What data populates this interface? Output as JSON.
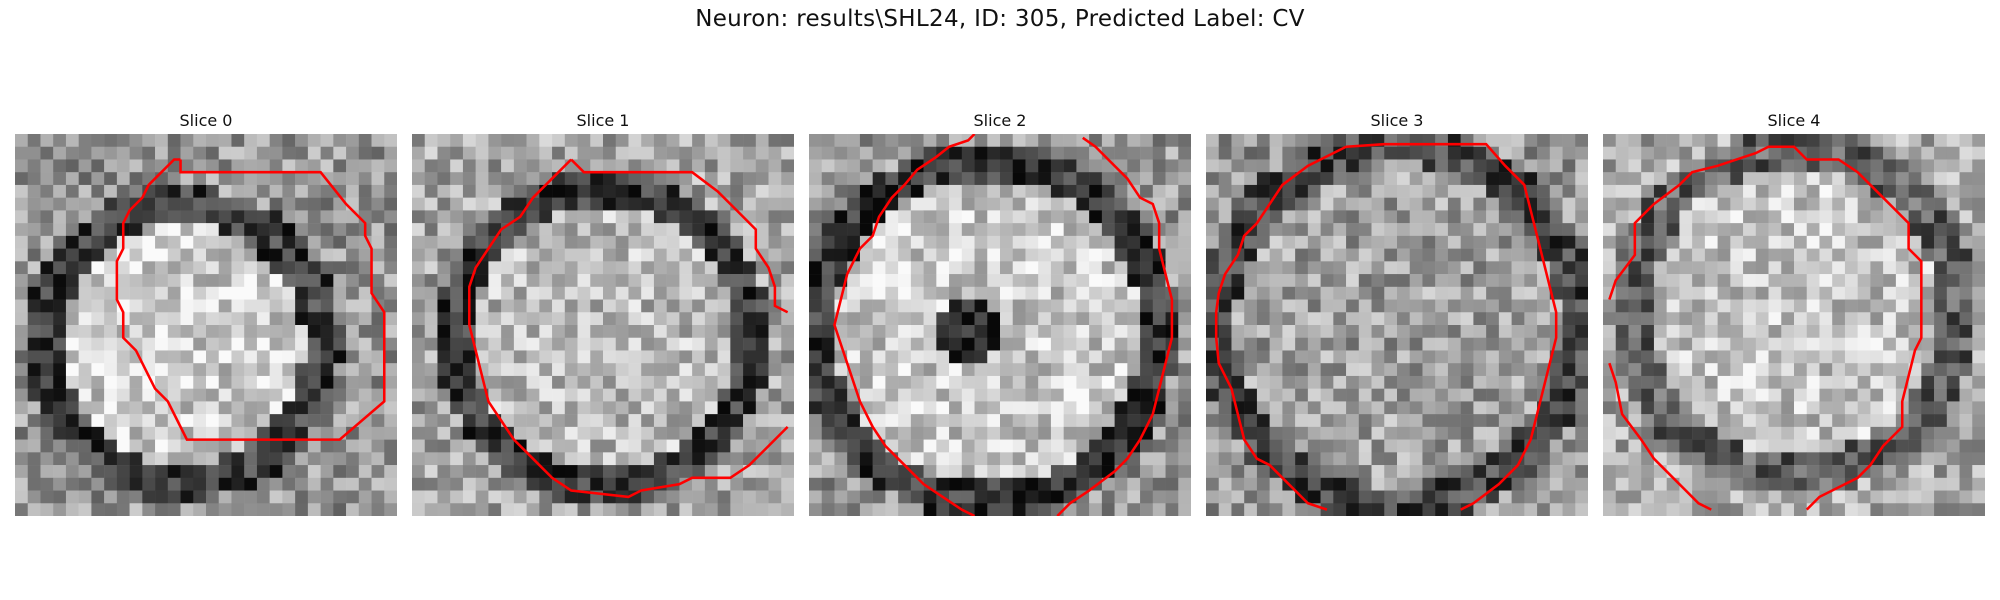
{
  "figure": {
    "title": "Neuron: results\\SHL24, ID: 305, Predicted Label: CV",
    "contour_color": "#ff0000"
  },
  "panels": [
    {
      "title": "Slice 0"
    },
    {
      "title": "Slice 1"
    },
    {
      "title": "Slice 2"
    },
    {
      "title": "Slice 3"
    },
    {
      "title": "Slice 4"
    }
  ]
}
